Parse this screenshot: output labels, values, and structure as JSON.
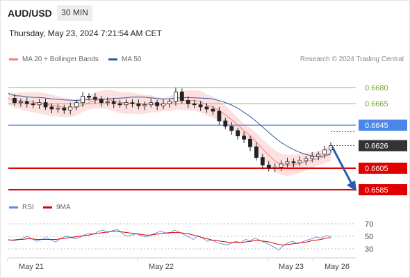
{
  "header": {
    "symbol": "AUD/USD",
    "timeframe": "30 MIN",
    "timestamp": "Thursday, May 23, 2024 7:21:54 AM CET"
  },
  "legend": {
    "ma20_label": "MA 20 + Bollinger Bands",
    "ma50_label": "MA 50",
    "rsi_label": "RSI",
    "ma9_label": "9MA",
    "credit": "Research © 2024 Trading Central"
  },
  "colors": {
    "ma20": "#f08080",
    "ma50": "#2f5a9e",
    "bollinger_fill": "#fde0e0",
    "green_level": "#8dc63f",
    "pivot_blue": "#4a86e8",
    "resistance_red": "#e00000",
    "last_price_bg": "#333333",
    "arrow": "#2a5caa",
    "rsi": "#5b8dd9",
    "rsi_ma": "#e00000"
  },
  "chart_data": [
    {
      "type": "line",
      "title": "",
      "ylim": [
        0.6575,
        0.6695
      ],
      "levels": [
        {
          "value": 0.668,
          "label": "0.6680",
          "kind": "target"
        },
        {
          "value": 0.6665,
          "label": "0.6665",
          "kind": "target"
        },
        {
          "value": 0.6645,
          "label": "0.6645",
          "kind": "pivot"
        },
        {
          "value": 0.6626,
          "label": "0.6626",
          "kind": "last"
        },
        {
          "value": 0.6605,
          "label": "0.6605",
          "kind": "support"
        },
        {
          "value": 0.6585,
          "label": "0.6585",
          "kind": "support"
        }
      ],
      "x_ticks": [
        "May 21",
        "May 22",
        "May 23",
        "May 26"
      ],
      "series": [
        {
          "name": "MA 20 + Bollinger Bands"
        },
        {
          "name": "MA 50"
        }
      ],
      "price_path": [
        0.667,
        0.6666,
        0.6667,
        0.6665,
        0.6664,
        0.6666,
        0.6662,
        0.666,
        0.6661,
        0.6659,
        0.6662,
        0.6666,
        0.6672,
        0.6671,
        0.6669,
        0.6666,
        0.6667,
        0.6665,
        0.6664,
        0.6666,
        0.6665,
        0.6663,
        0.6664,
        0.6666,
        0.6663,
        0.6665,
        0.6667,
        0.6676,
        0.6668,
        0.6665,
        0.6664,
        0.6662,
        0.666,
        0.6658,
        0.6649,
        0.6644,
        0.664,
        0.6635,
        0.6632,
        0.6625,
        0.6615,
        0.6608,
        0.6605,
        0.6606,
        0.6609,
        0.6611,
        0.661,
        0.6612,
        0.6614,
        0.6616,
        0.6618,
        0.6622,
        0.6626
      ]
    },
    {
      "type": "line",
      "title": "",
      "ylim": [
        20,
        80
      ],
      "y_ticks": [
        "70",
        "50",
        "30"
      ],
      "series": [
        {
          "name": "RSI",
          "values": [
            45,
            43,
            44,
            47,
            50,
            46,
            42,
            45,
            48,
            44,
            41,
            46,
            50,
            49,
            46,
            48,
            52,
            55,
            53,
            58,
            60,
            56,
            59,
            61,
            55,
            50,
            52,
            54,
            51,
            49,
            52,
            55,
            58,
            56,
            54,
            60,
            57,
            53,
            49,
            45,
            51,
            47,
            42,
            44,
            40,
            38,
            36,
            39,
            42,
            40,
            45,
            43,
            47,
            44,
            40,
            37,
            33,
            28,
            35,
            40,
            42,
            38,
            41,
            44,
            46,
            49,
            47,
            51,
            50
          ]
        },
        {
          "name": "9MA",
          "values": [
            44,
            44,
            45,
            45,
            46,
            46,
            45,
            45,
            45,
            45,
            45,
            46,
            47,
            48,
            49,
            50,
            51,
            52,
            54,
            55,
            56,
            57,
            58,
            58,
            57,
            56,
            55,
            54,
            53,
            52,
            52,
            53,
            54,
            55,
            56,
            56,
            56,
            55,
            54,
            52,
            50,
            48,
            46,
            44,
            43,
            42,
            41,
            40,
            40,
            40,
            41,
            42,
            43,
            43,
            42,
            41,
            39,
            37,
            36,
            37,
            38,
            39,
            40,
            41,
            43,
            44,
            45,
            47,
            48
          ]
        }
      ]
    }
  ]
}
